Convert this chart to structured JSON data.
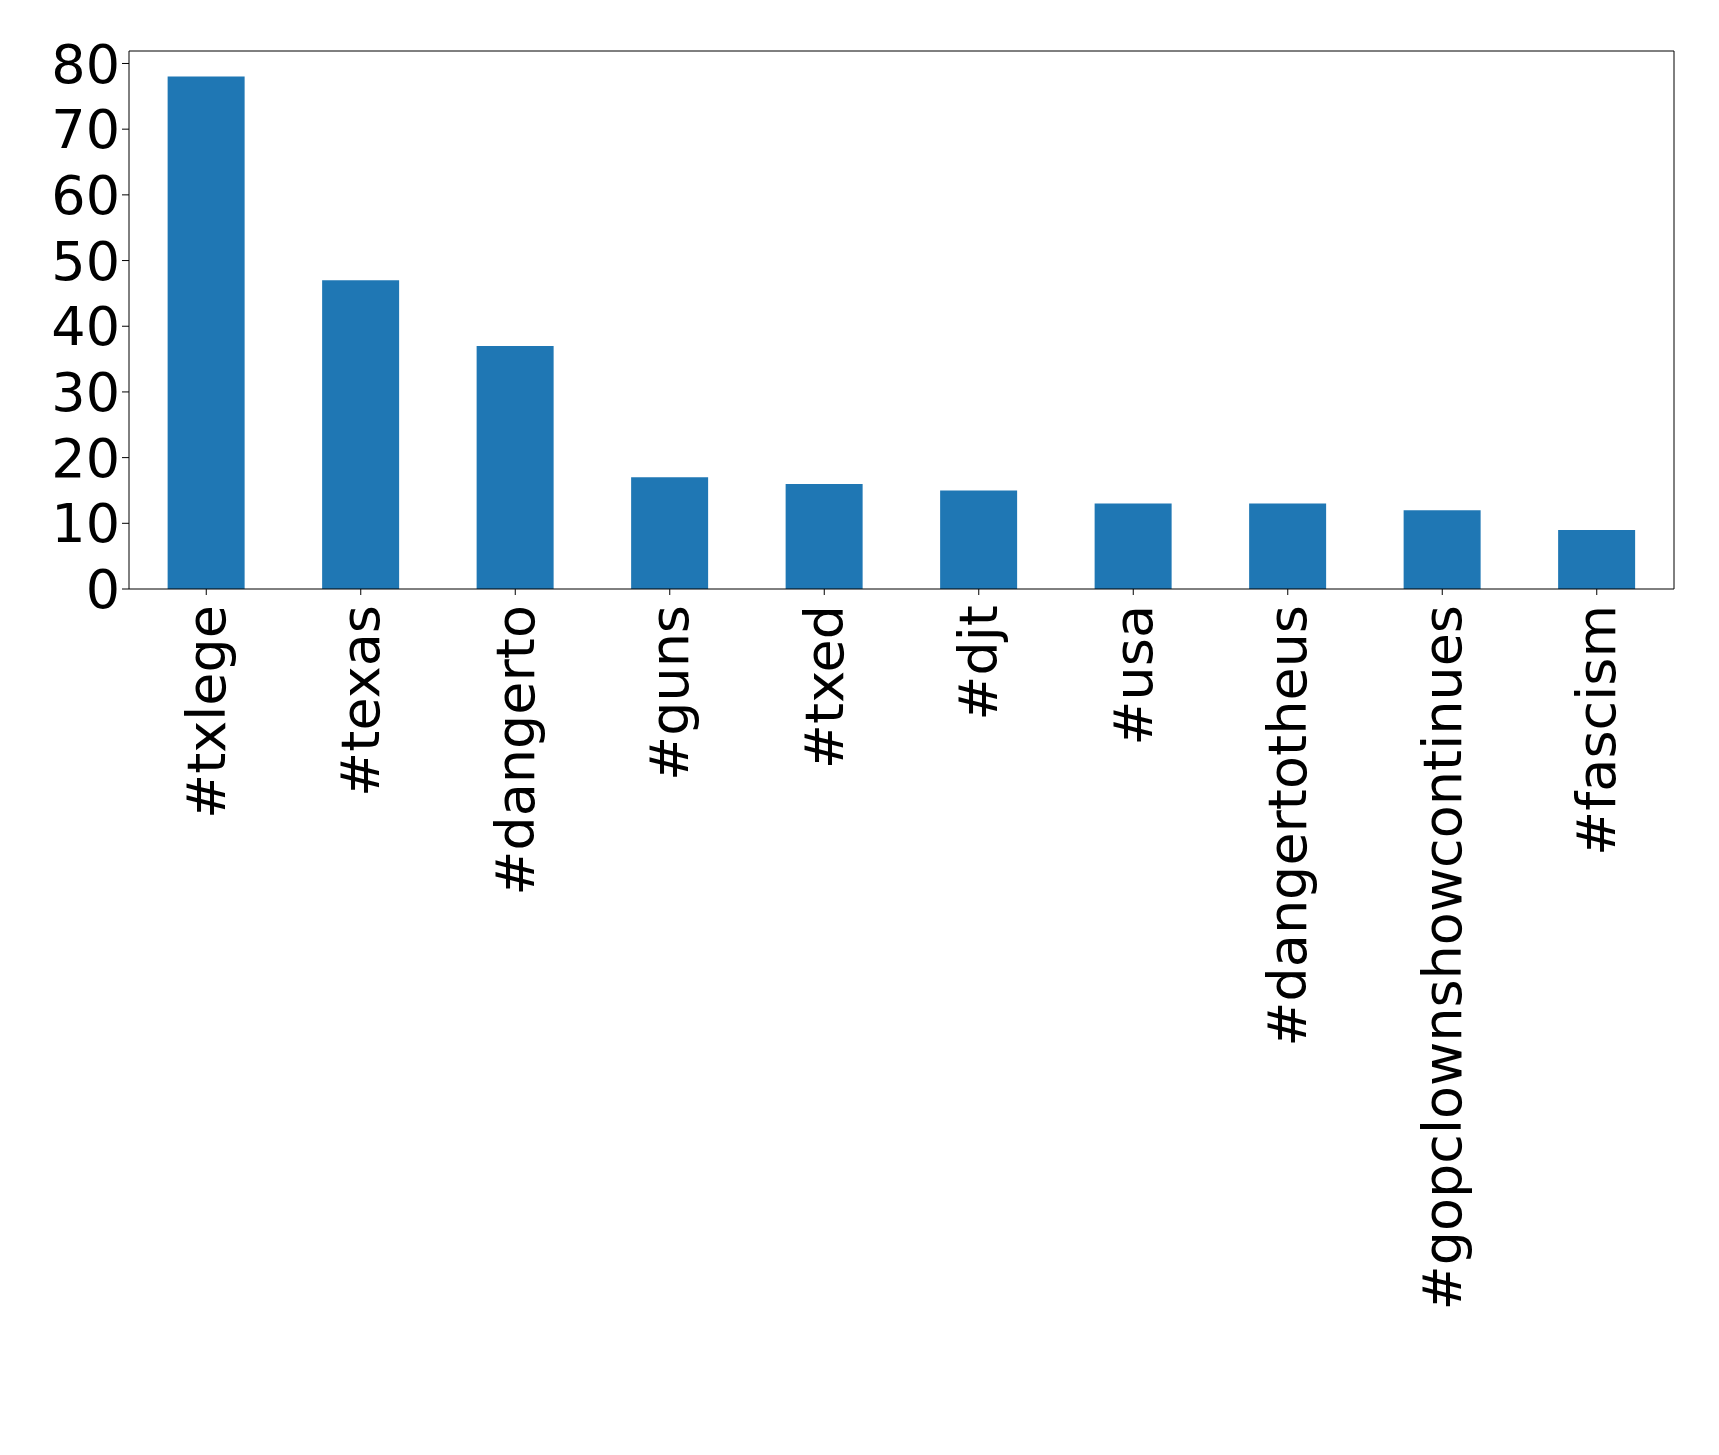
{
  "chart_data": {
    "type": "bar",
    "categories": [
      "#txlege",
      "#texas",
      "#dangerto",
      "#guns",
      "#txed",
      "#djt",
      "#usa",
      "#dangertotheus",
      "#gopclownshowcontinues",
      "#fascism"
    ],
    "values": [
      78,
      47,
      37,
      17,
      16,
      15,
      13,
      13,
      12,
      9
    ],
    "color": "#1f77b4",
    "ylim": [
      0,
      81.9
    ],
    "yticks": [
      0,
      10,
      20,
      30,
      40,
      50,
      60,
      70,
      80
    ],
    "grid": false
  }
}
